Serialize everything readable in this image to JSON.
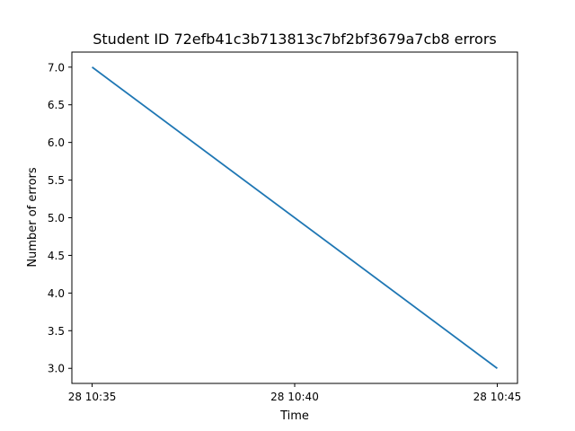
{
  "chart_data": {
    "type": "line",
    "title": "Student ID 72efb41c3b713813c7bf2bf3679a7cb8 errors",
    "xlabel": "Time",
    "ylabel": "Number of errors",
    "x": [
      "28 10:35",
      "28 10:45"
    ],
    "series": [
      {
        "values": [
          7.0,
          3.0
        ],
        "color": "#1f77b4"
      }
    ],
    "xticks": [
      "28 10:35",
      "28 10:40",
      "28 10:45"
    ],
    "yticks": [
      "3.0",
      "3.5",
      "4.0",
      "4.5",
      "5.0",
      "5.5",
      "6.0",
      "6.5",
      "7.0"
    ],
    "xlim": [
      "28 10:34.5",
      "28 10:45.5"
    ],
    "ylim": [
      2.8,
      7.2
    ],
    "grid": false,
    "legend": "none"
  }
}
